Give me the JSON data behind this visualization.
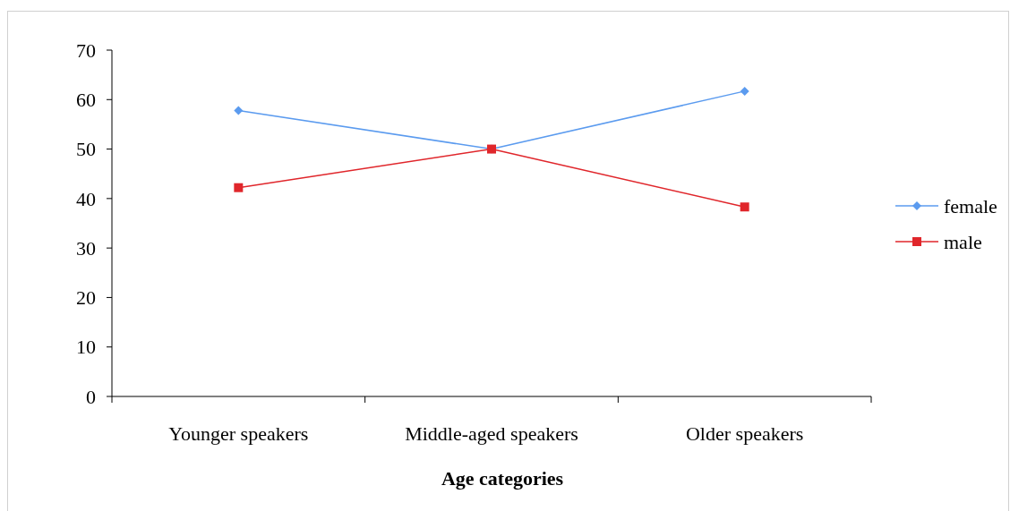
{
  "chart_data": {
    "type": "line",
    "xlabel": "Age categories",
    "categories": [
      "Younger speakers",
      "Middle-aged speakers",
      "Older speakers"
    ],
    "series": [
      {
        "name": "female",
        "color": "#5b9bef",
        "values": [
          57.8,
          50,
          61.7
        ],
        "marker": "diamond"
      },
      {
        "name": "male",
        "color": "#e0262b",
        "values": [
          42.2,
          50,
          38.3
        ],
        "marker": "square"
      }
    ],
    "ylim": [
      0,
      70
    ],
    "yticks": [
      0,
      10,
      20,
      30,
      40,
      50,
      60,
      70
    ],
    "grid": false,
    "legend": "right"
  }
}
